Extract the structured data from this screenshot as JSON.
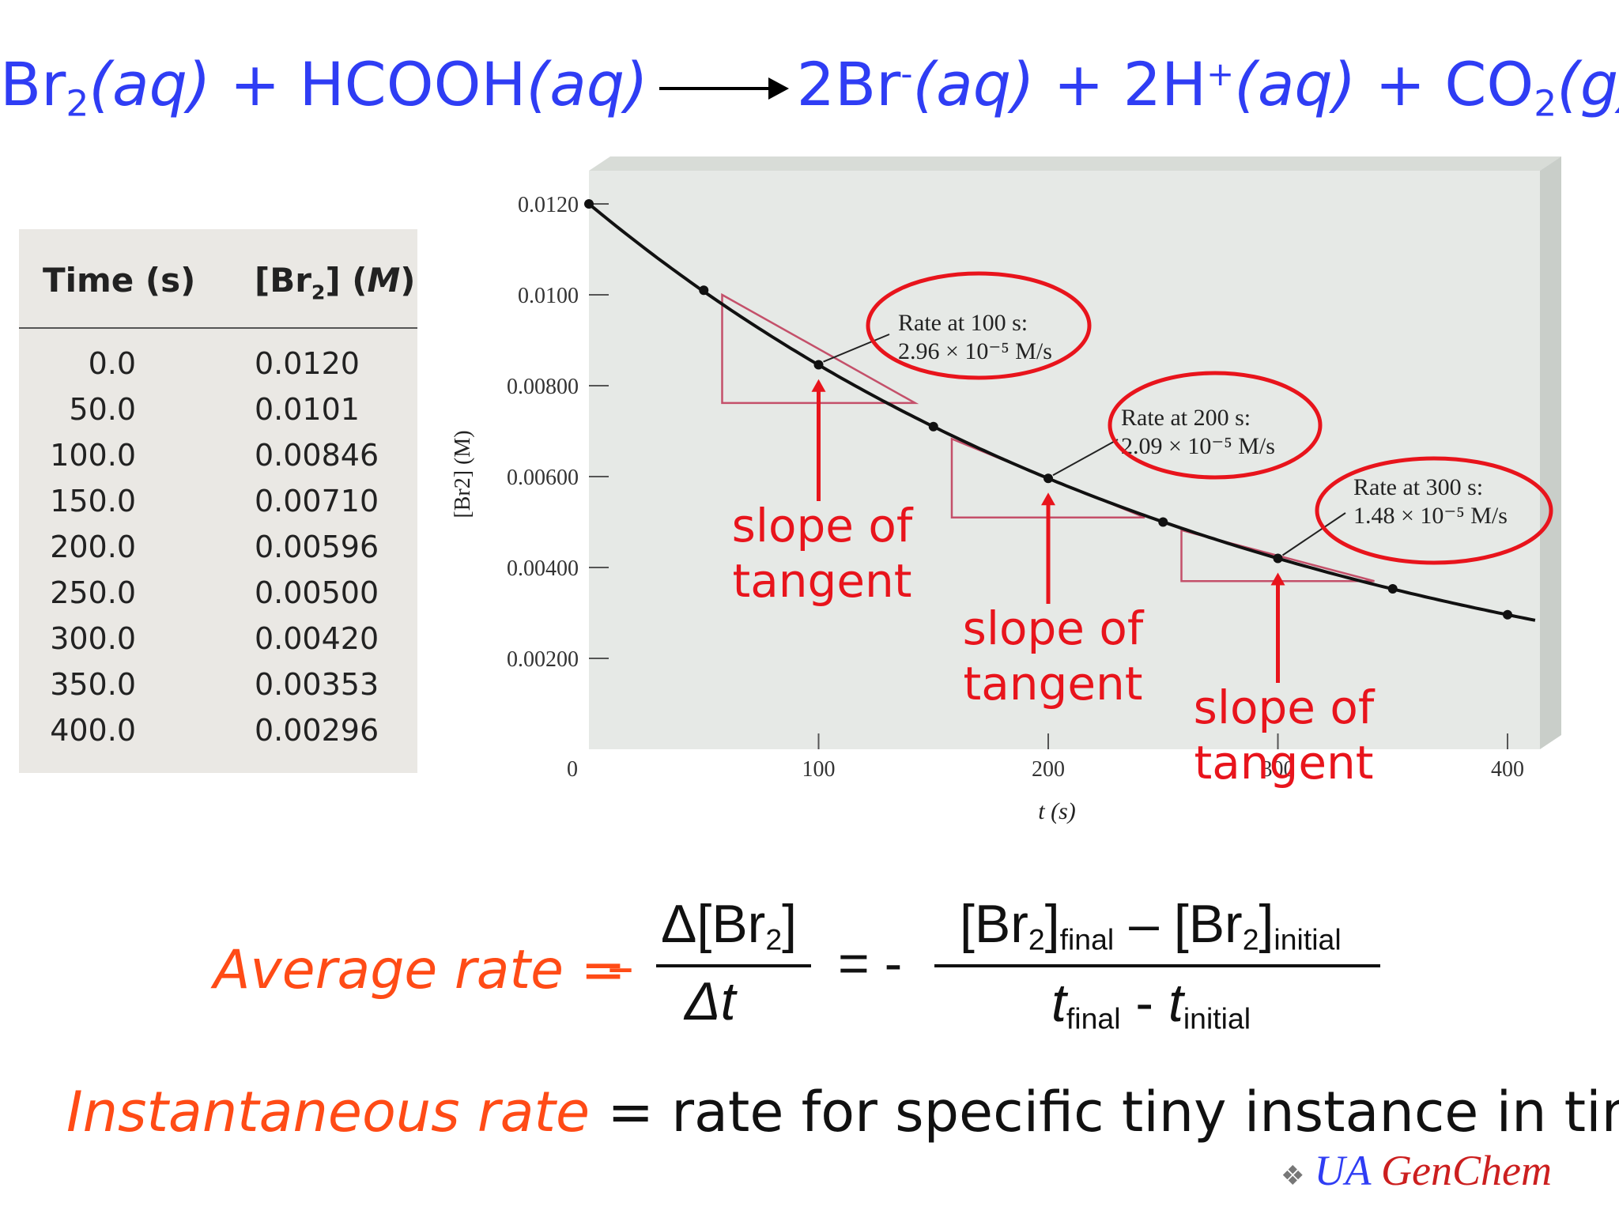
{
  "equation": {
    "br2": "Br",
    "br2_sub": "2",
    "aq1": "(aq)",
    "plus1": " + ",
    "hcooh": "HCOOH",
    "aq2": "(aq)",
    "product_br": "2Br",
    "product_br_sup": "-",
    "aq3": "(aq)",
    "plus2": " + ",
    "product_h": "2H",
    "product_h_sup": "+",
    "aq4": "(aq)",
    "plus3": " + ",
    "co": "CO",
    "co_sub": "2",
    "g": "(g)"
  },
  "table": {
    "header_time": "Time (s)",
    "header_br_pre": "[Br",
    "header_br_sub": "2",
    "header_br_post": "] (",
    "header_br_unit": "M",
    "header_br_close": ")",
    "rows": [
      {
        "time": "0.0",
        "conc": "0.0120"
      },
      {
        "time": "50.0",
        "conc": "0.0101"
      },
      {
        "time": "100.0",
        "conc": "0.00846"
      },
      {
        "time": "150.0",
        "conc": "0.00710"
      },
      {
        "time": "200.0",
        "conc": "0.00596"
      },
      {
        "time": "250.0",
        "conc": "0.00500"
      },
      {
        "time": "300.0",
        "conc": "0.00420"
      },
      {
        "time": "350.0",
        "conc": "0.00353"
      },
      {
        "time": "400.0",
        "conc": "0.00296"
      }
    ]
  },
  "chart_data": {
    "type": "line",
    "title": "",
    "xlabel": "t (s)",
    "ylabel": "[Br2] (M)",
    "xlim": [
      0,
      400
    ],
    "ylim": [
      0,
      0.0132
    ],
    "x_ticks": [
      "0",
      "100",
      "200",
      "300",
      "400"
    ],
    "y_ticks": [
      "0.00200",
      "0.00400",
      "0.00600",
      "0.00800",
      "0.0100",
      "0.0120"
    ],
    "series": [
      {
        "x": [
          0,
          50,
          100,
          150,
          200,
          250,
          300,
          350,
          400
        ],
        "y": [
          0.012,
          0.0101,
          0.00846,
          0.0071,
          0.00596,
          0.005,
          0.0042,
          0.00353,
          0.00296
        ]
      }
    ],
    "tangent_triangles": [
      {
        "x_start": 58,
        "x_end": 142,
        "y_top": 0.01,
        "y_bottom": 0.00762
      },
      {
        "x_start": 158,
        "x_end": 242,
        "y_top": 0.00683,
        "y_bottom": 0.0051
      },
      {
        "x_start": 258,
        "x_end": 342,
        "y_top": 0.00482,
        "y_bottom": 0.0037
      }
    ],
    "rate_annotations": [
      {
        "time": 100,
        "line1": "Rate at 100 s:",
        "line2": "2.96 × 10⁻⁵ M/s"
      },
      {
        "time": 200,
        "line1": "Rate at 200 s:",
        "line2": "2.09 × 10⁻⁵ M/s"
      },
      {
        "time": 300,
        "line1": "Rate at 300 s:",
        "line2": "1.48 × 10⁻⁵ M/s"
      }
    ]
  },
  "slope_labels": [
    "slope of",
    "tangent"
  ],
  "formula": {
    "avg_label": "Average rate = ",
    "minus": "–",
    "delta_num_pre": "Δ[Br",
    "delta_num_sub": "2",
    "delta_num_post": "]",
    "delta_den": "Δt",
    "eq_minus": "= -",
    "num_br1": "[Br",
    "num_br1_sub": "2",
    "num_br1_close": "]",
    "num_final": "final",
    "num_dash": " – ",
    "num_br2": "[Br",
    "num_br2_sub": "2",
    "num_br2_close": "]",
    "num_initial": "initial",
    "den_t1": "t",
    "den_final": "final",
    "den_minus": " - ",
    "den_t2": "t",
    "den_initial": "initial"
  },
  "instant": {
    "term": "Instantaneous rate",
    "rest": " = rate for specific tiny instance in time"
  },
  "credit": {
    "logo": "❖",
    "ua": "UA ",
    "gen": "GenChem"
  },
  "colors": {
    "blue": "#2f3df4",
    "red": "#e8141c",
    "orange": "#ff4b16",
    "triangle": "#c4506a",
    "panel": "#e6e9e6"
  }
}
